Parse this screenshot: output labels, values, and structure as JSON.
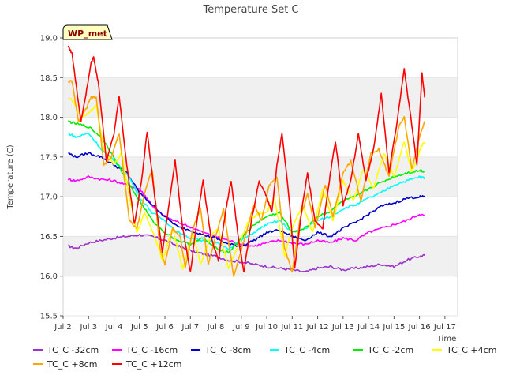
{
  "chart_data": {
    "type": "line",
    "title": "Temperature Set C",
    "xlabel": "Time",
    "ylabel": "Temperature (C)",
    "badge": "WP_met",
    "ylim": [
      15.5,
      19.0
    ],
    "xlim": [
      0,
      15.5
    ],
    "x_ticks": [
      {
        "v": 0,
        "label": "Jul 2"
      },
      {
        "v": 1,
        "label": "Jul 3"
      },
      {
        "v": 2,
        "label": "Jul 4"
      },
      {
        "v": 3,
        "label": "Jul 5"
      },
      {
        "v": 4,
        "label": "Jul 6"
      },
      {
        "v": 5,
        "label": "Jul 7"
      },
      {
        "v": 6,
        "label": "Jul 8"
      },
      {
        "v": 7,
        "label": "Jul 9"
      },
      {
        "v": 8,
        "label": "Jul 10"
      },
      {
        "v": 9,
        "label": "Jul 11"
      },
      {
        "v": 10,
        "label": "Jul 12"
      },
      {
        "v": 11,
        "label": "Jul 13"
      },
      {
        "v": 12,
        "label": "Jul 14"
      },
      {
        "v": 13,
        "label": "Jul 15"
      },
      {
        "v": 14,
        "label": "Jul 16"
      },
      {
        "v": 15,
        "label": "Jul 17"
      }
    ],
    "y_ticks": [
      {
        "v": 15.5,
        "label": "15.5"
      },
      {
        "v": 16.0,
        "label": "16.0"
      },
      {
        "v": 16.5,
        "label": "16.5"
      },
      {
        "v": 17.0,
        "label": "17.0"
      },
      {
        "v": 17.5,
        "label": "17.5"
      },
      {
        "v": 18.0,
        "label": "18.0"
      },
      {
        "v": 18.5,
        "label": "18.5"
      },
      {
        "v": 19.0,
        "label": "19.0"
      }
    ],
    "series": [
      {
        "name": "TC_C -32cm",
        "color": "#9932cc",
        "points": [
          [
            0.2,
            16.38
          ],
          [
            0.5,
            16.35
          ],
          [
            1,
            16.42
          ],
          [
            1.5,
            16.45
          ],
          [
            2,
            16.48
          ],
          [
            2.5,
            16.5
          ],
          [
            3,
            16.52
          ],
          [
            3.5,
            16.5
          ],
          [
            4,
            16.45
          ],
          [
            4.5,
            16.38
          ],
          [
            5,
            16.32
          ],
          [
            5.5,
            16.28
          ],
          [
            6,
            16.25
          ],
          [
            6.5,
            16.2
          ],
          [
            7,
            16.18
          ],
          [
            7.5,
            16.15
          ],
          [
            8,
            16.12
          ],
          [
            8.5,
            16.1
          ],
          [
            9,
            16.08
          ],
          [
            9.5,
            16.05
          ],
          [
            10,
            16.1
          ],
          [
            10.5,
            16.12
          ],
          [
            11,
            16.08
          ],
          [
            11.5,
            16.1
          ],
          [
            12,
            16.12
          ],
          [
            12.5,
            16.15
          ],
          [
            13,
            16.12
          ],
          [
            13.5,
            16.2
          ],
          [
            14,
            16.25
          ],
          [
            14.2,
            16.26
          ]
        ]
      },
      {
        "name": "TC_C -16cm",
        "color": "#ff00ff",
        "points": [
          [
            0.2,
            17.22
          ],
          [
            0.5,
            17.2
          ],
          [
            1,
            17.25
          ],
          [
            1.5,
            17.22
          ],
          [
            2,
            17.2
          ],
          [
            2.5,
            17.15
          ],
          [
            3,
            17.1
          ],
          [
            3.3,
            16.98
          ],
          [
            3.6,
            16.85
          ],
          [
            4,
            16.75
          ],
          [
            4.5,
            16.68
          ],
          [
            5,
            16.62
          ],
          [
            5.5,
            16.55
          ],
          [
            6,
            16.5
          ],
          [
            6.5,
            16.45
          ],
          [
            7,
            16.4
          ],
          [
            7.5,
            16.38
          ],
          [
            8,
            16.42
          ],
          [
            8.5,
            16.45
          ],
          [
            9,
            16.42
          ],
          [
            9.5,
            16.4
          ],
          [
            10,
            16.45
          ],
          [
            10.5,
            16.42
          ],
          [
            11,
            16.48
          ],
          [
            11.5,
            16.45
          ],
          [
            12,
            16.55
          ],
          [
            12.5,
            16.6
          ],
          [
            13,
            16.65
          ],
          [
            13.5,
            16.7
          ],
          [
            14,
            16.78
          ],
          [
            14.2,
            16.76
          ]
        ]
      },
      {
        "name": "TC_C -8cm",
        "color": "#0000cd",
        "points": [
          [
            0.2,
            17.55
          ],
          [
            0.5,
            17.5
          ],
          [
            1,
            17.55
          ],
          [
            1.5,
            17.5
          ],
          [
            2,
            17.4
          ],
          [
            2.5,
            17.3
          ],
          [
            3,
            17.05
          ],
          [
            3.5,
            16.9
          ],
          [
            4,
            16.75
          ],
          [
            4.5,
            16.62
          ],
          [
            5,
            16.58
          ],
          [
            5.5,
            16.52
          ],
          [
            6,
            16.48
          ],
          [
            6.5,
            16.4
          ],
          [
            7,
            16.38
          ],
          [
            7.5,
            16.45
          ],
          [
            8,
            16.55
          ],
          [
            8.5,
            16.58
          ],
          [
            9,
            16.5
          ],
          [
            9.5,
            16.45
          ],
          [
            10,
            16.55
          ],
          [
            10.5,
            16.5
          ],
          [
            11,
            16.6
          ],
          [
            11.5,
            16.68
          ],
          [
            12,
            16.78
          ],
          [
            12.5,
            16.88
          ],
          [
            13,
            16.92
          ],
          [
            13.5,
            16.98
          ],
          [
            14,
            17.0
          ],
          [
            14.2,
            17.0
          ]
        ]
      },
      {
        "name": "TC_C -4cm",
        "color": "#00ffff",
        "points": [
          [
            0.2,
            17.8
          ],
          [
            0.5,
            17.75
          ],
          [
            1,
            17.8
          ],
          [
            1.5,
            17.6
          ],
          [
            2,
            17.45
          ],
          [
            2.5,
            17.3
          ],
          [
            3,
            17.0
          ],
          [
            3.5,
            16.8
          ],
          [
            4,
            16.7
          ],
          [
            4.5,
            16.55
          ],
          [
            5,
            16.48
          ],
          [
            5.5,
            16.45
          ],
          [
            6,
            16.42
          ],
          [
            6.5,
            16.35
          ],
          [
            7,
            16.45
          ],
          [
            7.5,
            16.55
          ],
          [
            8,
            16.65
          ],
          [
            8.5,
            16.7
          ],
          [
            9,
            16.55
          ],
          [
            9.5,
            16.6
          ],
          [
            10,
            16.7
          ],
          [
            10.5,
            16.75
          ],
          [
            11,
            16.85
          ],
          [
            11.5,
            16.9
          ],
          [
            12,
            16.98
          ],
          [
            12.5,
            17.05
          ],
          [
            13,
            17.15
          ],
          [
            13.5,
            17.2
          ],
          [
            14,
            17.25
          ],
          [
            14.2,
            17.24
          ]
        ]
      },
      {
        "name": "TC_C -2cm",
        "color": "#00ee00",
        "points": [
          [
            0.2,
            17.95
          ],
          [
            0.5,
            17.92
          ],
          [
            1,
            17.88
          ],
          [
            1.5,
            17.75
          ],
          [
            2,
            17.5
          ],
          [
            2.5,
            17.2
          ],
          [
            3,
            16.95
          ],
          [
            3.5,
            16.7
          ],
          [
            4,
            16.55
          ],
          [
            4.5,
            16.45
          ],
          [
            5,
            16.4
          ],
          [
            5.5,
            16.48
          ],
          [
            6,
            16.35
          ],
          [
            6.5,
            16.3
          ],
          [
            7,
            16.48
          ],
          [
            7.5,
            16.65
          ],
          [
            8,
            16.75
          ],
          [
            8.5,
            16.8
          ],
          [
            9,
            16.55
          ],
          [
            9.5,
            16.6
          ],
          [
            10,
            16.75
          ],
          [
            10.5,
            16.82
          ],
          [
            11,
            16.95
          ],
          [
            11.5,
            17.0
          ],
          [
            12,
            17.1
          ],
          [
            12.5,
            17.18
          ],
          [
            13,
            17.25
          ],
          [
            13.5,
            17.3
          ],
          [
            14,
            17.33
          ],
          [
            14.2,
            17.32
          ]
        ]
      },
      {
        "name": "TC_C +4cm",
        "color": "#ffff00",
        "points": [
          [
            0.2,
            18.25
          ],
          [
            0.4,
            18.2
          ],
          [
            0.7,
            18.0
          ],
          [
            1,
            18.05
          ],
          [
            1.3,
            18.15
          ],
          [
            1.6,
            17.6
          ],
          [
            2,
            17.4
          ],
          [
            2.3,
            17.55
          ],
          [
            2.6,
            17.0
          ],
          [
            2.9,
            16.55
          ],
          [
            3.2,
            16.8
          ],
          [
            3.6,
            16.5
          ],
          [
            3.9,
            16.2
          ],
          [
            4.3,
            16.6
          ],
          [
            4.7,
            16.1
          ],
          [
            5.1,
            16.55
          ],
          [
            5.4,
            16.15
          ],
          [
            5.8,
            16.5
          ],
          [
            6.1,
            16.6
          ],
          [
            6.5,
            16.1
          ],
          [
            6.9,
            16.4
          ],
          [
            7.3,
            16.7
          ],
          [
            7.7,
            16.8
          ],
          [
            8,
            16.8
          ],
          [
            8.3,
            17.0
          ],
          [
            8.7,
            16.25
          ],
          [
            9,
            16.6
          ],
          [
            9.4,
            16.9
          ],
          [
            9.8,
            16.55
          ],
          [
            10.2,
            17.1
          ],
          [
            10.6,
            16.7
          ],
          [
            11,
            17.2
          ],
          [
            11.4,
            16.95
          ],
          [
            11.8,
            17.35
          ],
          [
            12.2,
            17.1
          ],
          [
            12.6,
            17.55
          ],
          [
            13,
            17.25
          ],
          [
            13.4,
            17.7
          ],
          [
            13.7,
            17.3
          ],
          [
            14.1,
            17.65
          ],
          [
            14.2,
            17.68
          ]
        ]
      },
      {
        "name": "TC_C +8cm",
        "color": "#ffa500",
        "points": [
          [
            0.2,
            18.45
          ],
          [
            0.35,
            18.45
          ],
          [
            0.6,
            17.95
          ],
          [
            0.9,
            18.1
          ],
          [
            1.1,
            18.25
          ],
          [
            1.3,
            18.25
          ],
          [
            1.6,
            17.4
          ],
          [
            1.9,
            17.5
          ],
          [
            2.2,
            17.8
          ],
          [
            2.6,
            16.7
          ],
          [
            2.9,
            16.6
          ],
          [
            3.2,
            17.05
          ],
          [
            3.5,
            17.35
          ],
          [
            3.8,
            16.35
          ],
          [
            4,
            16.15
          ],
          [
            4.3,
            16.6
          ],
          [
            4.6,
            16.5
          ],
          [
            4.8,
            16.1
          ],
          [
            5.1,
            16.6
          ],
          [
            5.4,
            16.85
          ],
          [
            5.7,
            16.15
          ],
          [
            6,
            16.5
          ],
          [
            6.3,
            16.85
          ],
          [
            6.7,
            16.0
          ],
          [
            7.1,
            16.45
          ],
          [
            7.5,
            16.9
          ],
          [
            7.8,
            16.7
          ],
          [
            8.1,
            17.15
          ],
          [
            8.4,
            17.25
          ],
          [
            8.7,
            16.35
          ],
          [
            9,
            16.05
          ],
          [
            9.3,
            16.7
          ],
          [
            9.6,
            17.05
          ],
          [
            9.9,
            16.6
          ],
          [
            10.3,
            17.15
          ],
          [
            10.6,
            16.75
          ],
          [
            11,
            17.3
          ],
          [
            11.3,
            17.45
          ],
          [
            11.7,
            16.95
          ],
          [
            12.1,
            17.55
          ],
          [
            12.4,
            17.6
          ],
          [
            12.8,
            17.25
          ],
          [
            13.2,
            17.9
          ],
          [
            13.4,
            18.0
          ],
          [
            13.7,
            17.35
          ],
          [
            14,
            17.75
          ],
          [
            14.2,
            17.95
          ]
        ]
      },
      {
        "name": "TC_C +12cm",
        "color": "#ff0000",
        "points": [
          [
            0.2,
            18.9
          ],
          [
            0.35,
            18.8
          ],
          [
            0.7,
            17.95
          ],
          [
            0.9,
            18.3
          ],
          [
            1.1,
            18.7
          ],
          [
            1.2,
            18.75
          ],
          [
            1.4,
            18.4
          ],
          [
            1.7,
            17.45
          ],
          [
            2,
            17.8
          ],
          [
            2.2,
            18.27
          ],
          [
            2.5,
            17.4
          ],
          [
            2.8,
            16.65
          ],
          [
            3.1,
            17.25
          ],
          [
            3.3,
            17.82
          ],
          [
            3.6,
            17.0
          ],
          [
            3.9,
            16.3
          ],
          [
            4.2,
            17.0
          ],
          [
            4.4,
            17.45
          ],
          [
            4.7,
            16.6
          ],
          [
            5,
            16.05
          ],
          [
            5.3,
            16.8
          ],
          [
            5.5,
            17.2
          ],
          [
            5.8,
            16.5
          ],
          [
            6.1,
            16.2
          ],
          [
            6.4,
            16.85
          ],
          [
            6.6,
            17.2
          ],
          [
            6.9,
            16.45
          ],
          [
            7.1,
            16.05
          ],
          [
            7.4,
            16.7
          ],
          [
            7.7,
            17.2
          ],
          [
            8,
            17.0
          ],
          [
            8.2,
            16.8
          ],
          [
            8.4,
            17.4
          ],
          [
            8.6,
            17.8
          ],
          [
            8.9,
            16.9
          ],
          [
            9.1,
            16.1
          ],
          [
            9.4,
            16.9
          ],
          [
            9.6,
            17.3
          ],
          [
            9.9,
            16.7
          ],
          [
            10.2,
            16.6
          ],
          [
            10.5,
            17.3
          ],
          [
            10.7,
            17.7
          ],
          [
            11,
            16.9
          ],
          [
            11.3,
            17.2
          ],
          [
            11.6,
            17.8
          ],
          [
            11.9,
            17.2
          ],
          [
            12.2,
            17.6
          ],
          [
            12.5,
            18.3
          ],
          [
            12.8,
            17.3
          ],
          [
            13.1,
            17.9
          ],
          [
            13.4,
            18.6
          ],
          [
            13.7,
            17.9
          ],
          [
            13.9,
            17.4
          ],
          [
            14.1,
            18.55
          ],
          [
            14.2,
            18.25
          ]
        ]
      }
    ]
  }
}
